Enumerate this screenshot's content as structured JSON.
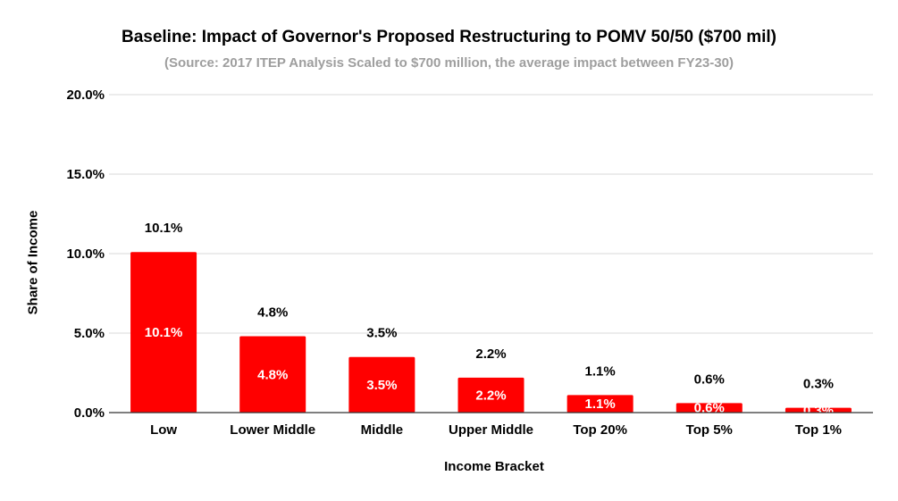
{
  "chart_data": {
    "type": "bar",
    "title": "Baseline: Impact of Governor's Proposed Restructuring to POMV 50/50 ($700 mil)",
    "subtitle": "(Source: 2017 ITEP Analysis Scaled to $700 million, the average impact between FY23-30)",
    "xlabel": "Income Bracket",
    "ylabel": "Share of Income",
    "categories": [
      "Low",
      "Lower Middle",
      "Middle",
      "Upper Middle",
      "Top 20%",
      "Top 5%",
      "Top 1%"
    ],
    "values": [
      10.1,
      4.8,
      3.5,
      2.2,
      1.1,
      0.6,
      0.3
    ],
    "value_labels": [
      "10.1%",
      "4.8%",
      "3.5%",
      "2.2%",
      "1.1%",
      "0.6%",
      "0.3%"
    ],
    "ylim": [
      0,
      20
    ],
    "yticks": [
      0,
      5,
      10,
      15,
      20
    ],
    "ytick_labels": [
      "0.0%",
      "5.0%",
      "10.0%",
      "15.0%",
      "20.0%"
    ],
    "grid": true,
    "legend": "none",
    "bar_color": "#ff0000",
    "inner_label_color": "#ffffff",
    "outer_label_color": "#000000",
    "gridline_color": "#d9d9d9",
    "axis_color": "#333333"
  }
}
